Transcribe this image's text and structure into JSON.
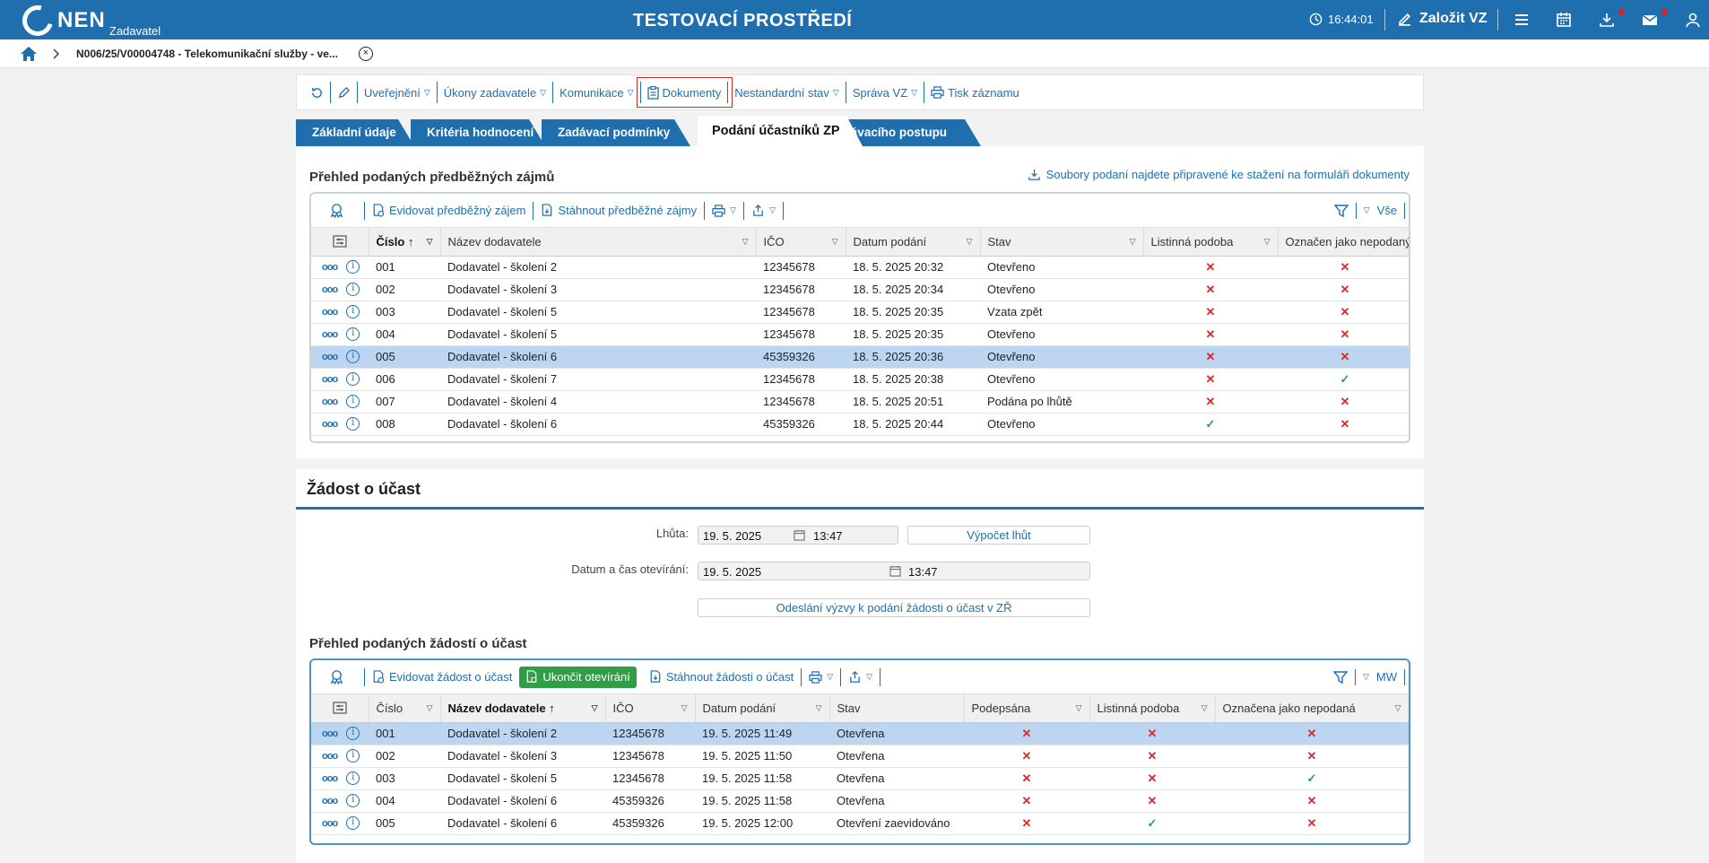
{
  "header": {
    "logo_text": "NEN",
    "logo_sub": "Zadavatel",
    "environment": "TESTOVACÍ PROSTŘEDÍ",
    "time": "16:44:01",
    "create_label": "Založit VZ"
  },
  "breadcrumb": {
    "text": "N006/25/V00004748 - Telekomunikační služby - ve..."
  },
  "toolbar": {
    "items": [
      "Uveřejnění",
      "Úkony zadavatele",
      "Komunikace",
      "Dokumenty",
      "Nestandardní stav",
      "Správa VZ",
      "Tisk záznamu"
    ]
  },
  "tabs": [
    "Základní údaje",
    "Kritéria hodnocení",
    "Zadávací podmínky",
    "Podání účastníků ZP",
    "Výsledek zadávacího postupu"
  ],
  "predbezne": {
    "title": "Přehled podaných předběžných zájmů",
    "download_note": "Soubory podaní najdete připravené ke stažení na formuláři dokumenty",
    "tools": [
      "Evidovat předběžný zájem",
      "Stáhnout předběžné zájmy"
    ],
    "filter_label": "Vše",
    "columns": [
      "Číslo",
      "Název dodavatele",
      "IČO",
      "Datum podání",
      "Stav",
      "Listinná podoba",
      "Označen jako nepodaný"
    ],
    "rows": [
      {
        "cislo": "001",
        "nazev": "Dodavatel - školení 2",
        "ico": "12345678",
        "datum": "18. 5. 2025 20:32",
        "stav": "Otevřeno",
        "listinna": "x",
        "nepodany": "x"
      },
      {
        "cislo": "002",
        "nazev": "Dodavatel - školení 3",
        "ico": "12345678",
        "datum": "18. 5. 2025 20:34",
        "stav": "Otevřeno",
        "listinna": "x",
        "nepodany": "x"
      },
      {
        "cislo": "003",
        "nazev": "Dodavatel - školení 5",
        "ico": "12345678",
        "datum": "18. 5. 2025 20:35",
        "stav": "Vzata zpět",
        "listinna": "x",
        "nepodany": "x"
      },
      {
        "cislo": "004",
        "nazev": "Dodavatel - školení 5",
        "ico": "12345678",
        "datum": "18. 5. 2025 20:35",
        "stav": "Otevřeno",
        "listinna": "x",
        "nepodany": "x"
      },
      {
        "cislo": "005",
        "nazev": "Dodavatel - školení 6",
        "ico": "45359326",
        "datum": "18. 5. 2025 20:36",
        "stav": "Otevřeno",
        "listinna": "x",
        "nepodany": "x"
      },
      {
        "cislo": "006",
        "nazev": "Dodavatel - školení 7",
        "ico": "12345678",
        "datum": "18. 5. 2025 20:38",
        "stav": "Otevřeno",
        "listinna": "x",
        "nepodany": "ok"
      },
      {
        "cislo": "007",
        "nazev": "Dodavatel - školení 4",
        "ico": "12345678",
        "datum": "18. 5. 2025 20:51",
        "stav": "Podána po lhůtě",
        "listinna": "x",
        "nepodany": "x"
      },
      {
        "cislo": "008",
        "nazev": "Dodavatel - školení 6",
        "ico": "45359326",
        "datum": "18. 5. 2025 20:44",
        "stav": "Otevřeno",
        "listinna": "ok",
        "nepodany": "x"
      }
    ]
  },
  "zadost": {
    "section_title": "Žádost o účast",
    "lhuta_label": "Lhůta:",
    "lhuta_date": "19. 5. 2025",
    "lhuta_time": "13:47",
    "vypocet_label": "Výpočet lhůt",
    "otevirani_label": "Datum a čas otevírání:",
    "otevirani_date": "19. 5. 2025",
    "otevirani_time": "13:47",
    "vyzva_label": "Odeslání výzvy k podání žádosti o účast v ZŘ",
    "list_title": "Přehled podaných žádostí o účast",
    "tools": [
      "Evidovat žádost o účast",
      "Ukončit otevírání",
      "Stáhnout žádosti o účast"
    ],
    "filter_label": "MW",
    "columns": [
      "Číslo",
      "Název dodavatele",
      "IČO",
      "Datum podání",
      "Stav",
      "Podepsána",
      "Listinná podoba",
      "Označena jako nepodaná"
    ],
    "rows": [
      {
        "cislo": "001",
        "nazev": "Dodavatel - školení 2",
        "ico": "12345678",
        "datum": "19. 5. 2025 11:49",
        "stav": "Otevřena",
        "podepsana": "x",
        "listinna": "x",
        "nepodana": "x"
      },
      {
        "cislo": "002",
        "nazev": "Dodavatel - školení 3",
        "ico": "12345678",
        "datum": "19. 5. 2025 11:50",
        "stav": "Otevřena",
        "podepsana": "x",
        "listinna": "x",
        "nepodana": "x"
      },
      {
        "cislo": "003",
        "nazev": "Dodavatel - školení 5",
        "ico": "12345678",
        "datum": "19. 5. 2025 11:58",
        "stav": "Otevřena",
        "podepsana": "x",
        "listinna": "x",
        "nepodana": "ok"
      },
      {
        "cislo": "004",
        "nazev": "Dodavatel - školení 6",
        "ico": "45359326",
        "datum": "19. 5. 2025 11:58",
        "stav": "Otevřena",
        "podepsana": "x",
        "listinna": "x",
        "nepodana": "x"
      },
      {
        "cislo": "005",
        "nazev": "Dodavatel - školení 6",
        "ico": "45359326",
        "datum": "19. 5. 2025 12:00",
        "stav": "Otevření zaevidováno",
        "podepsana": "x",
        "listinna": "ok",
        "nepodana": "x"
      }
    ]
  }
}
